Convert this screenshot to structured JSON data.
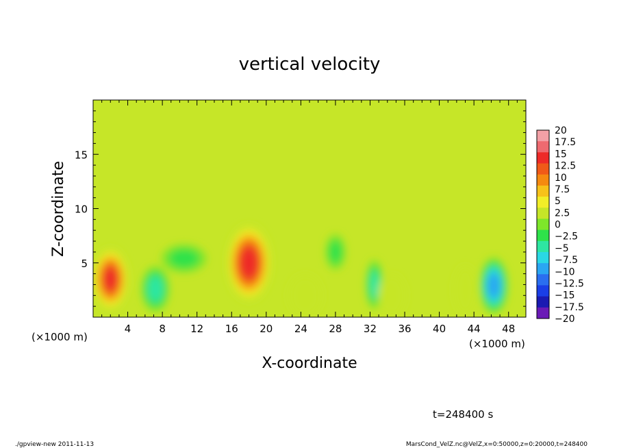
{
  "chart_data": {
    "type": "heatmap",
    "title": "vertical velocity",
    "xlabel": "X-coordinate",
    "ylabel": "Z-coordinate",
    "x_unit_label": "(×1000 m)",
    "x_unit_label_right": "(×1000 m)",
    "xlim": [
      0,
      50
    ],
    "ylim": [
      0,
      20
    ],
    "x_ticks": [
      4,
      8,
      12,
      16,
      20,
      24,
      28,
      32,
      36,
      40,
      44,
      48
    ],
    "x_tick_labels": [
      "4",
      "8",
      "12",
      "16",
      "20",
      "24",
      "28",
      "32",
      "36",
      "40",
      "44",
      "48"
    ],
    "y_ticks": [
      5,
      10,
      15
    ],
    "y_tick_labels": [
      "5",
      "10",
      "15"
    ],
    "colorbar": {
      "levels": [
        20,
        17.5,
        15,
        12.5,
        10,
        7.5,
        5,
        2.5,
        0,
        -2.5,
        -5,
        -7.5,
        -10,
        -12.5,
        -15,
        -17.5,
        -20
      ],
      "labels": [
        "20",
        "17.5",
        "15",
        "12.5",
        "10",
        "7.5",
        "5",
        "2.5",
        "0",
        "−2.5",
        "−5",
        "−7.5",
        "−10",
        "−12.5",
        "−15",
        "−17.5",
        "−20"
      ],
      "colors": [
        "#f2a0a6",
        "#ee6a70",
        "#ee2a28",
        "#f05a18",
        "#f58a10",
        "#f7c21a",
        "#f2ee28",
        "#c6e628",
        "#7ee62a",
        "#2ee24a",
        "#2ee6a2",
        "#2ad8e4",
        "#2aa6f2",
        "#2a6ef0",
        "#1a3ee6",
        "#1a1ab2",
        "#6a1ab6"
      ]
    },
    "features": [
      {
        "x": 2.0,
        "z": 3.5,
        "value": 15,
        "sx": 1.3,
        "sz": 1.8
      },
      {
        "x": 18.0,
        "z": 5.0,
        "value": 16,
        "sx": 1.6,
        "sz": 2.2
      },
      {
        "x": 7.2,
        "z": 2.6,
        "value": -9,
        "sx": 1.0,
        "sz": 1.3
      },
      {
        "x": 10.5,
        "z": 5.4,
        "value": -6,
        "sx": 1.6,
        "sz": 0.8
      },
      {
        "x": 28.0,
        "z": 6.0,
        "value": -6,
        "sx": 0.7,
        "sz": 1.0
      },
      {
        "x": 32.5,
        "z": 3.0,
        "value": -9,
        "sx": 0.6,
        "sz": 1.4
      },
      {
        "x": 46.3,
        "z": 2.9,
        "value": -14,
        "sx": 1.0,
        "sz": 1.6
      },
      {
        "x": 24.5,
        "z": 2.0,
        "value": 3,
        "sx": 1.2,
        "sz": 1.2
      },
      {
        "x": 34.5,
        "z": 2.0,
        "value": 3,
        "sx": 1.0,
        "sz": 1.2
      },
      {
        "x": 43.0,
        "z": 2.5,
        "value": 2.5,
        "sx": 0.8,
        "sz": 1.4
      }
    ],
    "background_value": 0.8,
    "time_label": "t=248400 s",
    "footer_left": "./gpview-new  2011-11-13",
    "footer_right": "MarsCond_VelZ.nc@VelZ,x=0:50000,z=0:20000,t=248400"
  }
}
